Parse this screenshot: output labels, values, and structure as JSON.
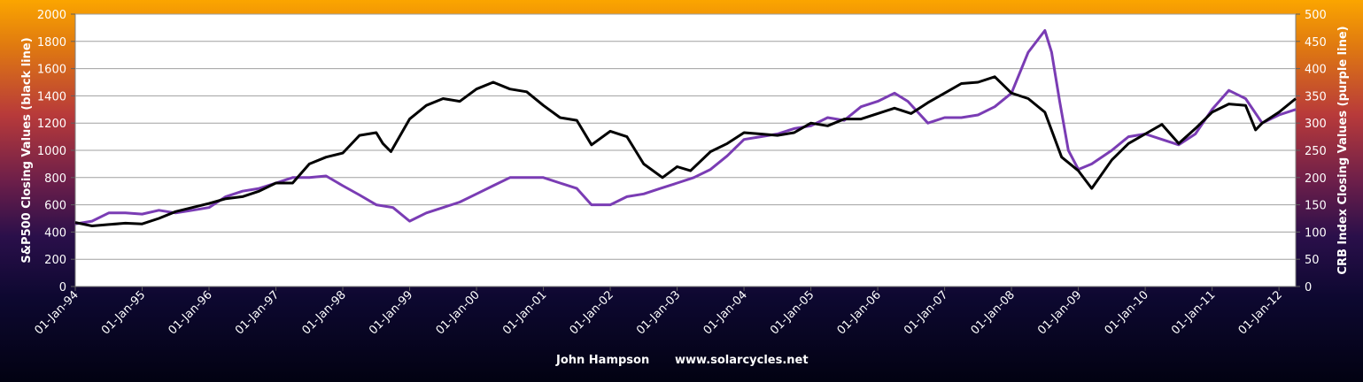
{
  "chart_data": {
    "type": "line",
    "x_tick_labels": [
      "01-Jan-94",
      "01-Jan-95",
      "01-Jan-96",
      "01-Jan-97",
      "01-Jan-98",
      "01-Jan-99",
      "01-Jan-00",
      "01-Jan-01",
      "01-Jan-02",
      "01-Jan-03",
      "01-Jan-04",
      "01-Jan-05",
      "01-Jan-06",
      "01-Jan-07",
      "01-Jan-08",
      "01-Jan-09",
      "01-Jan-10",
      "01-Jan-11",
      "01-Jan-12"
    ],
    "x_tick_values": [
      1994,
      1995,
      1996,
      1997,
      1998,
      1999,
      2000,
      2001,
      2002,
      2003,
      2004,
      2005,
      2006,
      2007,
      2008,
      2009,
      2010,
      2011,
      2012
    ],
    "xlim": [
      1994.0,
      2012.25
    ],
    "y_left": {
      "label": "S&P500 Closing Values (black line)",
      "lim": [
        0,
        2000
      ],
      "ticks": [
        0,
        200,
        400,
        600,
        800,
        1000,
        1200,
        1400,
        1600,
        1800,
        2000
      ]
    },
    "y_right": {
      "label": "CRB Index Closing Values (purple line)",
      "lim": [
        0,
        500
      ],
      "ticks": [
        0,
        50,
        100,
        150,
        200,
        250,
        300,
        350,
        400,
        450,
        500
      ]
    },
    "grid": true,
    "series": [
      {
        "axis": "left",
        "color": "#000000",
        "points": [
          [
            1994.0,
            470
          ],
          [
            1994.25,
            445
          ],
          [
            1994.5,
            455
          ],
          [
            1994.75,
            465
          ],
          [
            1995.0,
            460
          ],
          [
            1995.25,
            500
          ],
          [
            1995.5,
            550
          ],
          [
            1995.75,
            580
          ],
          [
            1996.0,
            610
          ],
          [
            1996.25,
            645
          ],
          [
            1996.5,
            660
          ],
          [
            1996.75,
            700
          ],
          [
            1997.0,
            760
          ],
          [
            1997.25,
            760
          ],
          [
            1997.5,
            900
          ],
          [
            1997.75,
            950
          ],
          [
            1998.0,
            980
          ],
          [
            1998.25,
            1110
          ],
          [
            1998.5,
            1130
          ],
          [
            1998.6,
            1050
          ],
          [
            1998.72,
            990
          ],
          [
            1999.0,
            1230
          ],
          [
            1999.25,
            1330
          ],
          [
            1999.5,
            1380
          ],
          [
            1999.75,
            1360
          ],
          [
            2000.0,
            1450
          ],
          [
            2000.25,
            1500
          ],
          [
            2000.5,
            1450
          ],
          [
            2000.75,
            1430
          ],
          [
            2001.0,
            1330
          ],
          [
            2001.25,
            1240
          ],
          [
            2001.5,
            1220
          ],
          [
            2001.72,
            1040
          ],
          [
            2002.0,
            1140
          ],
          [
            2002.25,
            1100
          ],
          [
            2002.5,
            900
          ],
          [
            2002.78,
            800
          ],
          [
            2003.0,
            880
          ],
          [
            2003.2,
            850
          ],
          [
            2003.5,
            990
          ],
          [
            2003.75,
            1050
          ],
          [
            2004.0,
            1130
          ],
          [
            2004.25,
            1120
          ],
          [
            2004.5,
            1110
          ],
          [
            2004.75,
            1130
          ],
          [
            2005.0,
            1200
          ],
          [
            2005.25,
            1180
          ],
          [
            2005.5,
            1230
          ],
          [
            2005.75,
            1230
          ],
          [
            2006.0,
            1270
          ],
          [
            2006.25,
            1310
          ],
          [
            2006.5,
            1270
          ],
          [
            2006.75,
            1350
          ],
          [
            2007.0,
            1420
          ],
          [
            2007.25,
            1490
          ],
          [
            2007.5,
            1500
          ],
          [
            2007.75,
            1540
          ],
          [
            2008.0,
            1420
          ],
          [
            2008.25,
            1380
          ],
          [
            2008.5,
            1280
          ],
          [
            2008.75,
            950
          ],
          [
            2009.0,
            850
          ],
          [
            2009.2,
            720
          ],
          [
            2009.5,
            930
          ],
          [
            2009.75,
            1050
          ],
          [
            2010.0,
            1120
          ],
          [
            2010.25,
            1190
          ],
          [
            2010.5,
            1050
          ],
          [
            2010.75,
            1160
          ],
          [
            2011.0,
            1280
          ],
          [
            2011.25,
            1340
          ],
          [
            2011.5,
            1330
          ],
          [
            2011.65,
            1150
          ],
          [
            2011.75,
            1200
          ],
          [
            2012.0,
            1280
          ],
          [
            2012.25,
            1380
          ]
        ]
      },
      {
        "axis": "right",
        "color": "#7a3cb4",
        "points": [
          [
            1994.0,
            115
          ],
          [
            1994.25,
            120
          ],
          [
            1994.5,
            135
          ],
          [
            1994.75,
            135
          ],
          [
            1995.0,
            133
          ],
          [
            1995.25,
            140
          ],
          [
            1995.5,
            135
          ],
          [
            1995.75,
            140
          ],
          [
            1996.0,
            145
          ],
          [
            1996.25,
            165
          ],
          [
            1996.5,
            175
          ],
          [
            1996.75,
            180
          ],
          [
            1997.0,
            190
          ],
          [
            1997.25,
            200
          ],
          [
            1997.5,
            200
          ],
          [
            1997.75,
            203
          ],
          [
            1998.0,
            185
          ],
          [
            1998.25,
            168
          ],
          [
            1998.5,
            150
          ],
          [
            1998.75,
            145
          ],
          [
            1999.0,
            120
          ],
          [
            1999.25,
            135
          ],
          [
            1999.5,
            145
          ],
          [
            1999.75,
            155
          ],
          [
            2000.0,
            170
          ],
          [
            2000.25,
            185
          ],
          [
            2000.5,
            200
          ],
          [
            2000.75,
            200
          ],
          [
            2001.0,
            200
          ],
          [
            2001.25,
            190
          ],
          [
            2001.5,
            180
          ],
          [
            2001.72,
            150
          ],
          [
            2002.0,
            150
          ],
          [
            2002.25,
            165
          ],
          [
            2002.5,
            170
          ],
          [
            2002.75,
            180
          ],
          [
            2003.0,
            190
          ],
          [
            2003.25,
            200
          ],
          [
            2003.5,
            215
          ],
          [
            2003.75,
            240
          ],
          [
            2004.0,
            270
          ],
          [
            2004.25,
            275
          ],
          [
            2004.5,
            280
          ],
          [
            2004.75,
            290
          ],
          [
            2005.0,
            295
          ],
          [
            2005.25,
            310
          ],
          [
            2005.5,
            305
          ],
          [
            2005.75,
            330
          ],
          [
            2006.0,
            340
          ],
          [
            2006.25,
            355
          ],
          [
            2006.45,
            340
          ],
          [
            2006.75,
            300
          ],
          [
            2007.0,
            310
          ],
          [
            2007.25,
            310
          ],
          [
            2007.5,
            315
          ],
          [
            2007.75,
            330
          ],
          [
            2008.0,
            355
          ],
          [
            2008.25,
            430
          ],
          [
            2008.5,
            470
          ],
          [
            2008.6,
            430
          ],
          [
            2008.72,
            340
          ],
          [
            2008.85,
            250
          ],
          [
            2009.0,
            215
          ],
          [
            2009.2,
            225
          ],
          [
            2009.5,
            250
          ],
          [
            2009.75,
            275
          ],
          [
            2010.0,
            280
          ],
          [
            2010.25,
            270
          ],
          [
            2010.5,
            260
          ],
          [
            2010.75,
            280
          ],
          [
            2011.0,
            325
          ],
          [
            2011.25,
            360
          ],
          [
            2011.5,
            345
          ],
          [
            2011.75,
            300
          ],
          [
            2012.0,
            315
          ],
          [
            2012.25,
            325
          ]
        ]
      }
    ],
    "credit_name": "John Hampson",
    "credit_site": "www.solarcycles.net"
  }
}
